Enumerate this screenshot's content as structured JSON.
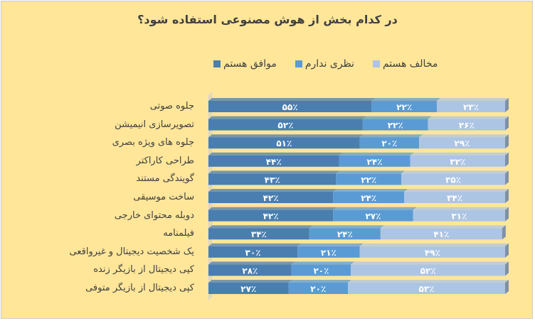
{
  "chart_data": {
    "type": "bar",
    "orientation": "horizontal",
    "stacked": "percent",
    "title": "در کدام بخش از هوش مصنوعی استفاده شود؟",
    "legend_position": "top",
    "grid": false,
    "categories": [
      "جلوه صوتی",
      "تصویرسازی انیمیشن",
      "جلوه های ویژه بصری",
      "طراحی کاراکتر",
      "گویندگی مستند",
      "ساخت موسیقی",
      "دوبله محتوای خارجی",
      "فیلمنامه",
      "یک شخصیت دیجیتال و غیرواقعی",
      "کپی دیجیتال از بازیگر زنده",
      "کپی دیجیتال از بازیگر متوفی"
    ],
    "series": [
      {
        "name": "موافق هستم",
        "color": "#4a7eb1",
        "values": [
          55,
          52,
          51,
          44,
          43,
          42,
          42,
          34,
          30,
          28,
          27
        ]
      },
      {
        "name": "نظری ندارم",
        "color": "#5b9bd5",
        "values": [
          22,
          22,
          20,
          24,
          22,
          24,
          27,
          24,
          21,
          20,
          20
        ]
      },
      {
        "name": "مخالف هستم",
        "color": "#adc5e4",
        "values": [
          23,
          26,
          29,
          32,
          35,
          34,
          31,
          41,
          49,
          52,
          53
        ]
      }
    ],
    "value_suffix": "٪"
  },
  "colors": {
    "background": "#ffe699",
    "text": "#404040",
    "label_text": "#ffffff"
  }
}
